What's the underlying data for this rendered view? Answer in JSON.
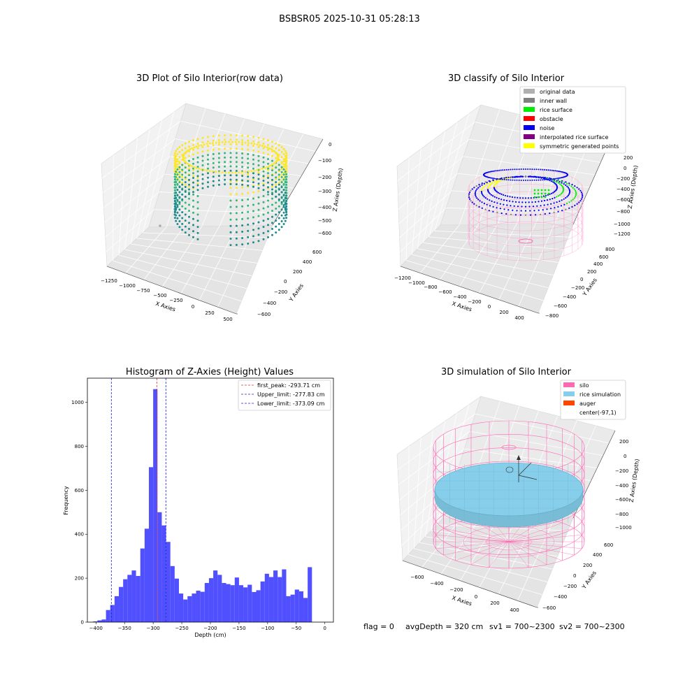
{
  "figure": {
    "suptitle": "BSBSR05 2025-10-31 05:28:13",
    "status_line": {
      "flag": "flag = 0",
      "avg_depth": "avgDepth = 320 cm",
      "sv1": "sv1 = 700~2300",
      "sv2": "sv2 = 700~2300"
    }
  },
  "chart_data": [
    {
      "type": "scatter3d",
      "title": "3D Plot of Silo Interior(row data)",
      "xlabel": "X Axies",
      "ylabel": "Y Axies",
      "zlabel": "Z Axies (Depth)",
      "x_ticks": [
        "−1250",
        "−1000",
        "−750",
        "−500",
        "−250",
        "0",
        "250",
        "500"
      ],
      "y_ticks": [
        "−600",
        "−400",
        "−200",
        "0",
        "200",
        "400",
        "600"
      ],
      "z_ticks": [
        "−600",
        "−500",
        "−400",
        "−300",
        "−200",
        "−100",
        "0"
      ],
      "colormap": "viridis",
      "colors": {
        "low": "#1f8b8c",
        "mid": "#35b779",
        "high": "#fde725"
      }
    },
    {
      "type": "scatter3d",
      "title": "3D classify of Silo Interior",
      "xlabel": "X Axies",
      "ylabel": "Y Axies",
      "zlabel": "Z Axies (Depth)",
      "x_ticks": [
        "−1200",
        "−1000",
        "−800",
        "−600",
        "−400",
        "−200",
        "0",
        "200",
        "400"
      ],
      "y_ticks": [
        "−800",
        "−600",
        "−400",
        "−200",
        "0",
        "200",
        "400",
        "600",
        "800"
      ],
      "z_ticks": [
        "−1200",
        "−1000",
        "−800",
        "−600",
        "−400",
        "−200",
        "0",
        "200"
      ],
      "legend": [
        {
          "label": "original data",
          "color": "#b0b0b0"
        },
        {
          "label": "inner wall",
          "color": "#808080"
        },
        {
          "label": "rice surface",
          "color": "#00ee00"
        },
        {
          "label": "obstacle",
          "color": "#ff0000"
        },
        {
          "label": "noise",
          "color": "#0000ee"
        },
        {
          "label": "interpolated rice surface",
          "color": "#800080"
        },
        {
          "label": "symmetric generated points",
          "color": "#ffff00"
        }
      ],
      "legend_position": "top-right"
    },
    {
      "type": "bar",
      "subtype": "histogram",
      "title": "Histogram of Z-Axies (Height) Values",
      "xlabel": "Depth (cm)",
      "ylabel": "Frequency",
      "bin_width": 7.5,
      "x_start": -405,
      "xlim": [
        -415,
        15
      ],
      "ylim": [
        0,
        1110
      ],
      "x_ticks": [
        {
          "value": -400,
          "label": "−400"
        },
        {
          "value": -350,
          "label": "−350"
        },
        {
          "value": -300,
          "label": "−300"
        },
        {
          "value": -250,
          "label": "−250"
        },
        {
          "value": -200,
          "label": "−200"
        },
        {
          "value": -150,
          "label": "−150"
        },
        {
          "value": -100,
          "label": "−100"
        },
        {
          "value": -50,
          "label": "−50"
        },
        {
          "value": 0,
          "label": "0"
        }
      ],
      "y_ticks": [
        {
          "value": 0,
          "label": "0"
        },
        {
          "value": 200,
          "label": "200"
        },
        {
          "value": 400,
          "label": "400"
        },
        {
          "value": 600,
          "label": "600"
        },
        {
          "value": 800,
          "label": "800"
        },
        {
          "value": 1000,
          "label": "1000"
        }
      ],
      "values": [
        3,
        8,
        12,
        55,
        78,
        118,
        160,
        195,
        215,
        235,
        210,
        335,
        425,
        705,
        1060,
        500,
        440,
        365,
        255,
        198,
        130,
        103,
        118,
        130,
        143,
        138,
        178,
        200,
        235,
        215,
        178,
        173,
        168,
        203,
        168,
        158,
        170,
        137,
        145,
        185,
        220,
        205,
        235,
        205,
        240,
        118,
        125,
        148,
        140,
        110,
        250
      ],
      "bar_color": "#5050ff",
      "vlines": [
        {
          "value": -293.71,
          "label": "first_peak: -293.71 cm",
          "color": "#e03030"
        },
        {
          "value": -277.83,
          "label": "Upper_limit: -277.83 cm",
          "color": "#2020d0"
        },
        {
          "value": -373.09,
          "label": "Lower_limit: -373.09 cm",
          "color": "#2020d0"
        }
      ],
      "legend_position": "top-right"
    },
    {
      "type": "surface3d",
      "title": "3D simulation of Silo Interior",
      "xlabel": "X Axies",
      "ylabel": "Y Axies",
      "zlabel": "Z Axies (Depth)",
      "x_ticks": [
        "−600",
        "−400",
        "−200",
        "0",
        "200",
        "400"
      ],
      "y_ticks": [
        "−600",
        "−400",
        "−200",
        "0",
        "200",
        "400",
        "600"
      ],
      "z_ticks": [
        "−1000",
        "−800",
        "−600",
        "−400",
        "−200",
        "0",
        "200"
      ],
      "legend": [
        {
          "label": "silo",
          "color": "#ff69b4"
        },
        {
          "label": "rice simulation",
          "color": "#87ceeb"
        },
        {
          "label": "auger",
          "color": "#ff4500"
        },
        {
          "label": "center(-97,1)",
          "color": ""
        }
      ],
      "legend_position": "top-right"
    }
  ]
}
